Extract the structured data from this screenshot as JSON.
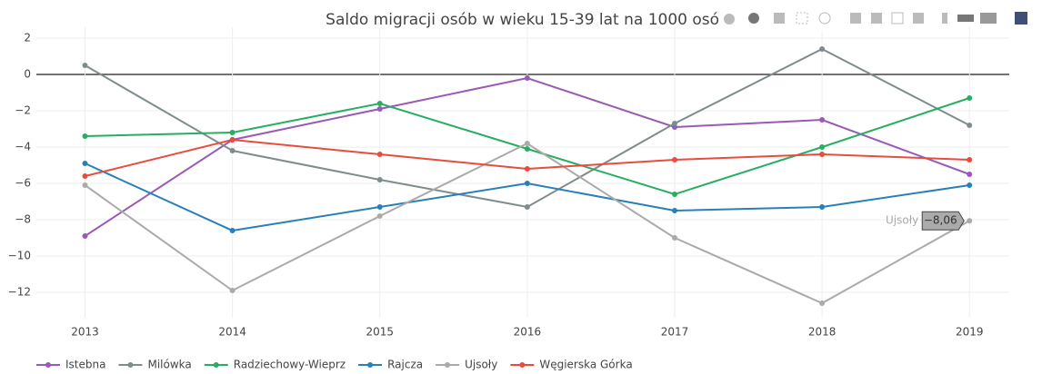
{
  "chart_data": {
    "type": "line",
    "title": "Saldo migracji osób w wieku 15-39 lat na 1000 osób",
    "x": [
      2013,
      2014,
      2015,
      2016,
      2017,
      2018,
      2019
    ],
    "xlim": [
      2012.67,
      2019.27
    ],
    "xticks": [
      2013,
      2014,
      2015,
      2016,
      2017,
      2018,
      2019
    ],
    "ylim": [
      -13.4,
      2.6
    ],
    "yticks": [
      {
        "value": 2,
        "label": "2"
      },
      {
        "value": 0,
        "label": "0"
      },
      {
        "value": -2,
        "label": "−2"
      },
      {
        "value": -4,
        "label": "−4"
      },
      {
        "value": -6,
        "label": "−6"
      },
      {
        "value": -8,
        "label": "−8"
      },
      {
        "value": -10,
        "label": "−10"
      },
      {
        "value": -12,
        "label": "−12"
      }
    ],
    "grid": true,
    "legend": "bottom",
    "series": [
      {
        "name": "Istebna",
        "color": "#9b59b6",
        "values": [
          -8.9,
          -3.6,
          -1.9,
          -0.2,
          -2.9,
          -2.5,
          -5.5
        ]
      },
      {
        "name": "Milówka",
        "color": "#7f8c8d",
        "values": [
          0.5,
          -4.2,
          -5.8,
          -7.3,
          -2.7,
          1.4,
          -2.8
        ]
      },
      {
        "name": "Radziechowy-Wieprz",
        "color": "#27ae60",
        "values": [
          -3.4,
          -3.2,
          -1.6,
          -4.1,
          -6.6,
          -4.0,
          -1.3
        ]
      },
      {
        "name": "Rajcza",
        "color": "#2980b9",
        "values": [
          -4.9,
          -8.6,
          -7.3,
          -6.0,
          -7.5,
          -7.3,
          -6.1
        ]
      },
      {
        "name": "Ujsoły",
        "color": "#aaaaaa",
        "values": [
          -6.1,
          -11.9,
          -7.8,
          -3.8,
          -9.0,
          -12.6,
          -8.06
        ],
        "value_labels": [
          null,
          null,
          null,
          null,
          null,
          null,
          "−8,06"
        ]
      },
      {
        "name": "Węgierska Górka",
        "color": "#e74c3c",
        "values": [
          -5.6,
          -3.6,
          -4.4,
          -5.2,
          -4.7,
          -4.4,
          -4.7
        ]
      }
    ]
  }
}
